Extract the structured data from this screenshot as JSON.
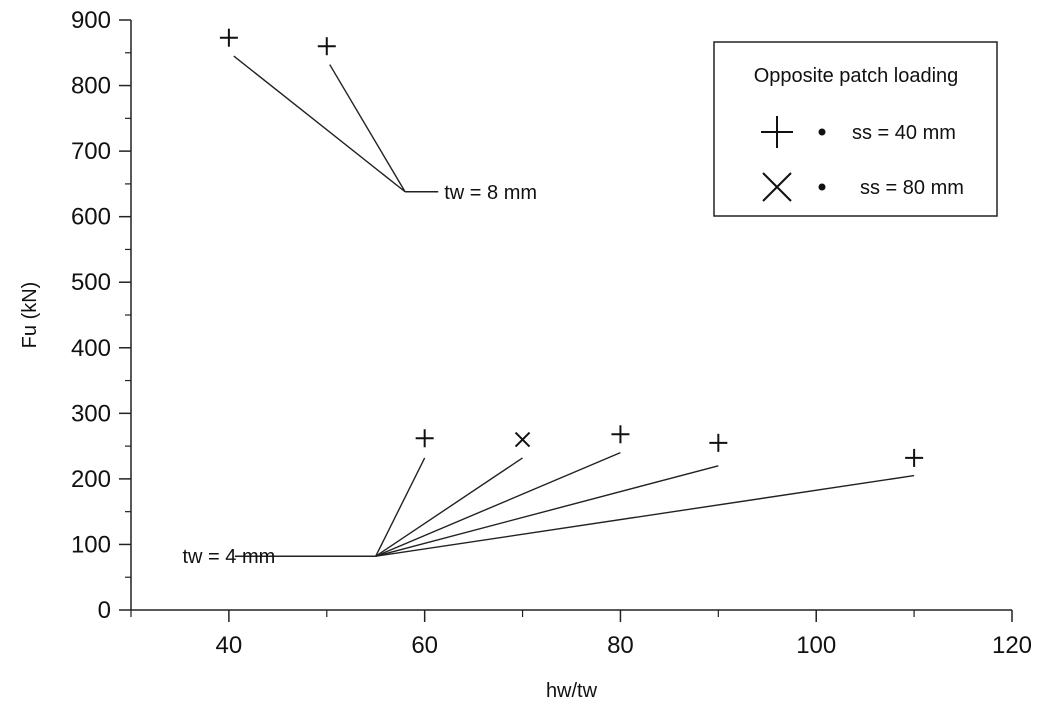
{
  "chart_data": {
    "type": "scatter",
    "xlabel": "hw/tw",
    "ylabel": "Fu (kN)",
    "xlim": [
      30,
      120
    ],
    "ylim": [
      0,
      900
    ],
    "xticks": [
      40,
      60,
      80,
      100,
      120
    ],
    "yticks": [
      0,
      100,
      200,
      300,
      400,
      500,
      600,
      700,
      800,
      900
    ],
    "grid": false,
    "legend": {
      "placement": "top-right",
      "title": "Opposite patch loading",
      "entries": [
        {
          "marker": "plus",
          "label": "ss = 40 mm"
        },
        {
          "marker": "cross",
          "label": "ss = 80 mm"
        }
      ]
    },
    "series": [
      {
        "name": "ss = 40 mm",
        "marker": "plus",
        "points": [
          {
            "x": 40,
            "y": 873
          },
          {
            "x": 50,
            "y": 860
          },
          {
            "x": 60,
            "y": 262
          },
          {
            "x": 80,
            "y": 268
          },
          {
            "x": 90,
            "y": 255
          },
          {
            "x": 110,
            "y": 232
          }
        ]
      },
      {
        "name": "ss = 80 mm",
        "marker": "cross",
        "points": [
          {
            "x": 70,
            "y": 260
          }
        ]
      }
    ],
    "annotations": [
      {
        "text": "tw = 8 mm",
        "anchor": {
          "x": 58,
          "y": 638
        },
        "text_at": {
          "x": 62,
          "y": 638
        },
        "targets": [
          {
            "x": 40.5,
            "y": 845
          },
          {
            "x": 50.3,
            "y": 832
          }
        ]
      },
      {
        "text": "tw = 4 mm",
        "anchor": {
          "x": 55,
          "y": 82
        },
        "text_at": {
          "x": 40,
          "y": 82
        },
        "targets": [
          {
            "x": 60,
            "y": 232
          },
          {
            "x": 70,
            "y": 232
          },
          {
            "x": 80,
            "y": 240
          },
          {
            "x": 90,
            "y": 220
          },
          {
            "x": 110,
            "y": 205
          }
        ]
      }
    ]
  }
}
